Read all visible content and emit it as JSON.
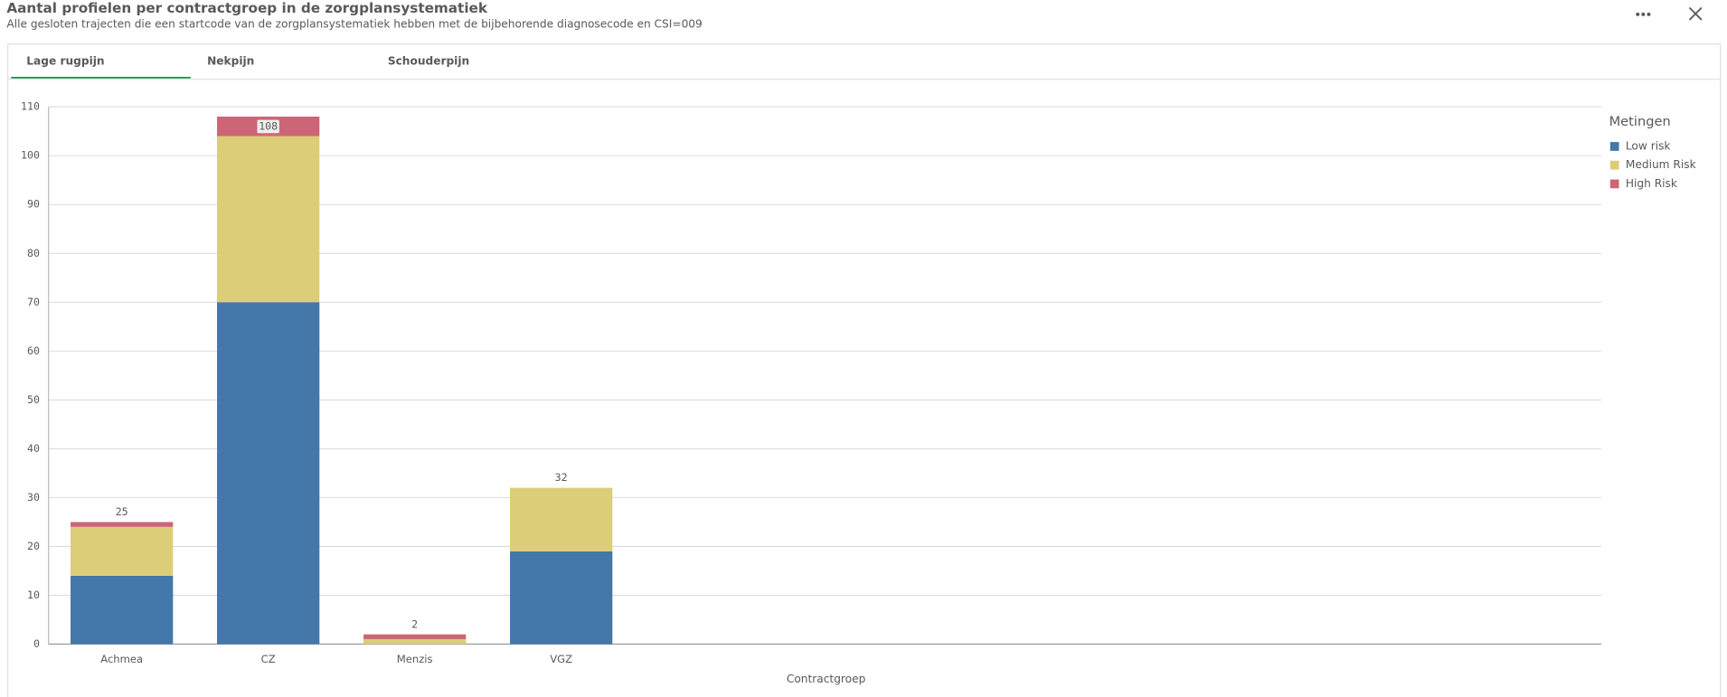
{
  "header": {
    "title": "Aantal profielen per contractgroep in de zorgplansystematiek",
    "subtitle": "Alle gesloten trajecten die een startcode van de zorgplansystematiek hebben met de bijbehorende diagnosecode en CSI=009"
  },
  "tabs": [
    "Lage rugpijn",
    "Nekpijn",
    "Schouderpijn"
  ],
  "chart_data": {
    "type": "stacked-bar",
    "x_label": "Contractgroep",
    "legend_title": "Metingen",
    "legend": "right",
    "grid": true,
    "categories": [
      "Achmea",
      "CZ",
      "Menzis",
      "VGZ"
    ],
    "series": [
      {
        "name": "Low risk",
        "color": "#4477aa",
        "values": [
          14,
          70,
          0,
          19
        ]
      },
      {
        "name": "Medium Risk",
        "color": "#dccd79",
        "values": [
          10,
          34,
          1,
          13
        ]
      },
      {
        "name": "High Risk",
        "color": "#cc6677",
        "values": [
          1,
          4,
          1,
          0
        ]
      }
    ],
    "totals": [
      25,
      108,
      2,
      32
    ],
    "ylim": [
      0,
      110
    ],
    "yticks": [
      0,
      10,
      20,
      30,
      40,
      50,
      60,
      70,
      80,
      90,
      100,
      110
    ]
  }
}
